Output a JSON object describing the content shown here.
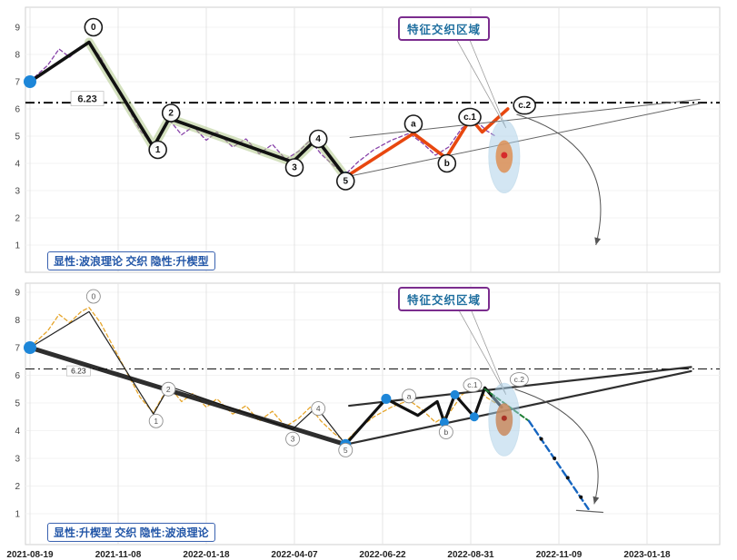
{
  "chart_data": [
    {
      "type": "line",
      "id": "explicit-wave-theory",
      "title": "",
      "xlabel": "",
      "ylabel": "",
      "ylim": [
        0,
        9.7
      ],
      "yticks": [
        1,
        2,
        3,
        4,
        5,
        6,
        7,
        8,
        9
      ],
      "xticks": [
        "2021-08-19",
        "2021-11-08",
        "2022-01-18",
        "2022-04-07",
        "2022-06-22",
        "2022-08-31",
        "2022-11-09",
        "2023-01-18"
      ],
      "show_x_labels": false,
      "bold_labels": true,
      "annotation": "特征交织区域",
      "mode_label": "显性:波浪理论 交织 隐性:升楔型",
      "hline": {
        "value": 6.23,
        "label": "6.23",
        "width": 2,
        "big": true,
        "label_t": 0.65,
        "label_v": 6.38
      },
      "series": [
        {
          "name": "price-line",
          "color": "#7b2fa0",
          "width": 1.3,
          "dash": "4 3",
          "opacity": 0.9,
          "points": [
            [
              0,
              7.0
            ],
            [
              0.08,
              7.25
            ],
            [
              0.2,
              7.6
            ],
            [
              0.33,
              8.2
            ],
            [
              0.45,
              7.9
            ],
            [
              0.58,
              8.3
            ],
            [
              0.67,
              8.45
            ],
            [
              0.8,
              7.9
            ],
            [
              0.95,
              7.0
            ],
            [
              1.1,
              6.1
            ],
            [
              1.25,
              5.2
            ],
            [
              1.4,
              4.65
            ],
            [
              1.5,
              5.2
            ],
            [
              1.58,
              5.6
            ],
            [
              1.72,
              5.05
            ],
            [
              1.85,
              5.35
            ],
            [
              2.0,
              4.85
            ],
            [
              2.12,
              5.15
            ],
            [
              2.3,
              4.6
            ],
            [
              2.45,
              4.9
            ],
            [
              2.6,
              4.35
            ],
            [
              2.75,
              4.7
            ],
            [
              2.9,
              4.15
            ],
            [
              3.05,
              4.45
            ],
            [
              3.18,
              4.85
            ],
            [
              3.3,
              4.35
            ],
            [
              3.45,
              3.9
            ],
            [
              3.58,
              3.6
            ],
            [
              3.72,
              4.05
            ],
            [
              3.9,
              4.5
            ],
            [
              4.1,
              4.85
            ],
            [
              4.3,
              5.1
            ],
            [
              4.45,
              4.75
            ],
            [
              4.6,
              4.3
            ],
            [
              4.75,
              4.6
            ],
            [
              4.9,
              5.3
            ],
            [
              5.05,
              5.6
            ],
            [
              5.18,
              5.2
            ],
            [
              5.28,
              5.0
            ]
          ]
        },
        {
          "name": "wave-halo",
          "color": "#a9c47f",
          "width": 10,
          "opacity": 0.5,
          "points": [
            [
              0.67,
              8.45
            ],
            [
              1.4,
              4.6
            ],
            [
              1.58,
              5.65
            ],
            [
              2.98,
              4.05
            ],
            [
              3.25,
              4.9
            ],
            [
              3.58,
              3.5
            ]
          ]
        },
        {
          "name": "wave-main",
          "color": "#111111",
          "width": 3.6,
          "points": [
            [
              0,
              7.0
            ],
            [
              0.67,
              8.45
            ],
            [
              1.4,
              4.6
            ],
            [
              1.58,
              5.65
            ],
            [
              2.98,
              4.05
            ],
            [
              3.25,
              4.9
            ],
            [
              3.58,
              3.5
            ]
          ]
        },
        {
          "name": "abc-impulse",
          "color": "#e8470f",
          "width": 3.6,
          "points": [
            [
              3.58,
              3.5
            ],
            [
              4.35,
              5.1
            ],
            [
              4.72,
              4.2
            ],
            [
              5.0,
              5.65
            ],
            [
              5.13,
              5.15
            ],
            [
              5.42,
              6.0
            ]
          ]
        },
        {
          "name": "wedge-upper",
          "color": "#666666",
          "width": 1,
          "points": [
            [
              3.63,
              4.95
            ],
            [
              7.6,
              6.35
            ]
          ]
        },
        {
          "name": "wedge-lower",
          "color": "#666666",
          "width": 1,
          "points": [
            [
              3.58,
              3.5
            ],
            [
              7.6,
              6.2
            ]
          ]
        }
      ],
      "pointer": [
        [
          4.83,
          8.6
        ],
        [
          4.98,
          8.6
        ],
        [
          5.4,
          5.3
        ]
      ],
      "ellipse": {
        "t": 5.38,
        "v": 4.25,
        "rx": 17,
        "ry": 40,
        "outer": "#a8cfe8",
        "inner": "#dd8f55"
      },
      "arrow": {
        "from": [
          5.52,
          5.8
        ],
        "ctrl": [
          6.7,
          4.6
        ],
        "to": [
          6.42,
          1.0
        ]
      },
      "markers": [
        {
          "t": 0,
          "v": 7.0,
          "r": 7,
          "color": "#1d86d8"
        },
        {
          "t": 3.58,
          "v": 3.5,
          "r": 6,
          "color": "#1d86d8"
        },
        {
          "t": 5.38,
          "v": 4.3,
          "r": 3.5,
          "color": "#d62b2b"
        }
      ],
      "wave_labels": [
        {
          "text": "0",
          "t": 0.72,
          "v": 9.0
        },
        {
          "text": "1",
          "t": 1.45,
          "v": 4.5
        },
        {
          "text": "2",
          "t": 1.6,
          "v": 5.85
        },
        {
          "text": "3",
          "t": 3.0,
          "v": 3.85
        },
        {
          "text": "4",
          "t": 3.27,
          "v": 4.9
        },
        {
          "text": "5",
          "t": 3.58,
          "v": 3.35
        },
        {
          "text": "a",
          "t": 4.35,
          "v": 5.45
        },
        {
          "text": "b",
          "t": 4.73,
          "v": 4.0
        },
        {
          "text": "c.1",
          "t": 4.99,
          "v": 5.7
        },
        {
          "text": "c.2",
          "t": 5.61,
          "v": 6.13
        }
      ]
    },
    {
      "type": "line",
      "id": "explicit-rising-wedge",
      "title": "",
      "xlabel": "",
      "ylabel": "",
      "ylim": [
        0,
        9.7
      ],
      "yticks": [
        1,
        2,
        3,
        4,
        5,
        6,
        7,
        8,
        9
      ],
      "xticks": [
        "2021-08-19",
        "2021-11-08",
        "2022-01-18",
        "2022-04-07",
        "2022-06-22",
        "2022-08-31",
        "2022-11-09",
        "2023-01-18"
      ],
      "show_x_labels": true,
      "bold_labels": false,
      "annotation": "特征交织区域",
      "mode_label": "显性:升楔型 交织 隐性:波浪理论",
      "hline": {
        "value": 6.23,
        "label": "6.23",
        "width": 1,
        "big": false,
        "label_t": 0.55,
        "label_v": 6.16
      },
      "series": [
        {
          "name": "price-line",
          "color": "#e39b12",
          "width": 1.3,
          "dash": "4 3",
          "opacity": 0.9,
          "points": [
            [
              0,
              7.0
            ],
            [
              0.08,
              7.25
            ],
            [
              0.2,
              7.6
            ],
            [
              0.33,
              8.2
            ],
            [
              0.45,
              7.9
            ],
            [
              0.58,
              8.3
            ],
            [
              0.67,
              8.45
            ],
            [
              0.8,
              7.9
            ],
            [
              0.95,
              7.0
            ],
            [
              1.1,
              6.1
            ],
            [
              1.25,
              5.2
            ],
            [
              1.4,
              4.65
            ],
            [
              1.5,
              5.2
            ],
            [
              1.58,
              5.6
            ],
            [
              1.72,
              5.05
            ],
            [
              1.85,
              5.35
            ],
            [
              2.0,
              4.85
            ],
            [
              2.12,
              5.15
            ],
            [
              2.3,
              4.6
            ],
            [
              2.45,
              4.9
            ],
            [
              2.6,
              4.35
            ],
            [
              2.75,
              4.7
            ],
            [
              2.9,
              4.15
            ],
            [
              3.05,
              4.45
            ],
            [
              3.18,
              4.85
            ],
            [
              3.3,
              4.35
            ],
            [
              3.45,
              3.9
            ],
            [
              3.58,
              3.6
            ],
            [
              3.72,
              4.05
            ],
            [
              3.9,
              4.5
            ],
            [
              4.1,
              4.85
            ],
            [
              4.3,
              5.1
            ],
            [
              4.45,
              4.75
            ],
            [
              4.6,
              4.3
            ],
            [
              4.75,
              4.6
            ],
            [
              4.9,
              5.3
            ],
            [
              5.05,
              5.6
            ],
            [
              5.18,
              5.2
            ],
            [
              5.28,
              5.0
            ]
          ]
        },
        {
          "name": "wave-thin",
          "color": "#222222",
          "width": 1.2,
          "points": [
            [
              0,
              7.0
            ],
            [
              0.67,
              8.3
            ],
            [
              1.4,
              4.6
            ],
            [
              1.58,
              5.6
            ],
            [
              2.98,
              4.05
            ],
            [
              3.25,
              4.85
            ],
            [
              3.58,
              3.5
            ]
          ]
        },
        {
          "name": "trend-thick",
          "color": "#111111",
          "width": 5,
          "opacity": 0.88,
          "points": [
            [
              0,
              7.0
            ],
            [
              3.58,
              3.5
            ]
          ]
        },
        {
          "name": "wedge-upper",
          "color": "#2f2f2f",
          "width": 2.2,
          "points": [
            [
              3.62,
              4.9
            ],
            [
              7.5,
              6.3
            ]
          ]
        },
        {
          "name": "wedge-lower",
          "color": "#2f2f2f",
          "width": 2.2,
          "points": [
            [
              3.58,
              3.5
            ],
            [
              7.5,
              6.15
            ]
          ]
        },
        {
          "name": "wedge-zigzag",
          "color": "#111111",
          "width": 3.2,
          "points": [
            [
              3.58,
              3.5
            ],
            [
              4.04,
              5.15
            ],
            [
              4.4,
              4.55
            ],
            [
              4.62,
              5.05
            ],
            [
              4.7,
              4.3
            ],
            [
              4.82,
              5.3
            ],
            [
              5.04,
              4.5
            ],
            [
              5.16,
              5.55
            ],
            [
              5.35,
              4.85
            ]
          ]
        },
        {
          "name": "breakdown-green",
          "color": "#1e7e34",
          "width": 2,
          "dash": "5 3",
          "points": [
            [
              5.16,
              5.5
            ],
            [
              5.66,
              4.35
            ]
          ]
        },
        {
          "name": "breakdown-blue",
          "color": "#1565c0",
          "width": 2.4,
          "dash": "7 4",
          "points": [
            [
              5.66,
              4.35
            ],
            [
              6.35,
              1.1
            ]
          ]
        },
        {
          "name": "end-tick",
          "color": "#666666",
          "width": 1.2,
          "points": [
            [
              6.2,
              1.12
            ],
            [
              6.5,
              1.05
            ]
          ]
        }
      ],
      "pointer": [
        [
          4.83,
          8.55
        ],
        [
          4.98,
          8.55
        ],
        [
          5.4,
          5.3
        ]
      ],
      "ellipse": {
        "t": 5.38,
        "v": 4.4,
        "rx": 17,
        "ry": 40,
        "outer": "#a8cfe8",
        "inner": "#c98a5e"
      },
      "arrow": {
        "from": [
          5.5,
          5.5
        ],
        "ctrl": [
          6.65,
          4.3
        ],
        "to": [
          6.4,
          1.35
        ]
      },
      "markers": [
        {
          "t": 0,
          "v": 7.0,
          "r": 7,
          "color": "#1d86d8"
        },
        {
          "t": 3.58,
          "v": 3.5,
          "r": 6,
          "color": "#1d86d8"
        },
        {
          "t": 4.04,
          "v": 5.15,
          "r": 5.5,
          "color": "#1d86d8"
        },
        {
          "t": 4.7,
          "v": 4.3,
          "r": 5,
          "color": "#1d86d8"
        },
        {
          "t": 4.82,
          "v": 5.3,
          "r": 5,
          "color": "#1d86d8"
        },
        {
          "t": 5.04,
          "v": 4.5,
          "r": 5,
          "color": "#1d86d8"
        },
        {
          "t": 5.38,
          "v": 4.45,
          "r": 3,
          "color": "#a93226"
        },
        {
          "t": 5.8,
          "v": 3.7,
          "r": 2,
          "color": "#111111"
        },
        {
          "t": 5.95,
          "v": 3.0,
          "r": 2,
          "color": "#111111"
        },
        {
          "t": 6.1,
          "v": 2.3,
          "r": 2,
          "color": "#111111"
        },
        {
          "t": 6.25,
          "v": 1.6,
          "r": 2,
          "color": "#111111"
        }
      ],
      "wave_labels": [
        {
          "text": "0",
          "t": 0.72,
          "v": 8.85
        },
        {
          "text": "1",
          "t": 1.43,
          "v": 4.35
        },
        {
          "text": "2",
          "t": 1.57,
          "v": 5.5
        },
        {
          "text": "3",
          "t": 2.98,
          "v": 3.7
        },
        {
          "text": "4",
          "t": 3.27,
          "v": 4.8
        },
        {
          "text": "5",
          "t": 3.58,
          "v": 3.3
        },
        {
          "text": "a",
          "t": 4.3,
          "v": 5.25
        },
        {
          "text": "b",
          "t": 4.72,
          "v": 3.95
        },
        {
          "text": "c.1",
          "t": 5.02,
          "v": 5.65
        },
        {
          "text": "c.2",
          "t": 5.55,
          "v": 5.85
        }
      ]
    }
  ]
}
